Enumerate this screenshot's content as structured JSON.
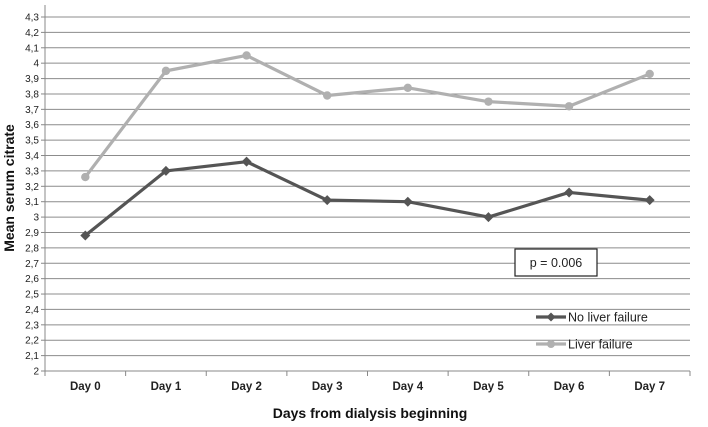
{
  "chart_data": {
    "type": "line",
    "title": "",
    "xlabel": "Days from dialysis beginning",
    "ylabel": "Mean serum citrate",
    "categories": [
      "Day 0",
      "Day 1",
      "Day 2",
      "Day 3",
      "Day 4",
      "Day 5",
      "Day 6",
      "Day 7"
    ],
    "ylim": [
      2,
      4.3
    ],
    "ystep": 0.1,
    "yticks": [
      "2",
      "2,1",
      "2,2",
      "2,3",
      "2,4",
      "2,5",
      "2,6",
      "2,7",
      "2,8",
      "2,9",
      "3",
      "3,1",
      "3,2",
      "3,3",
      "3,4",
      "3,5",
      "3,6",
      "3,7",
      "3,8",
      "3,9",
      "4",
      "4,1",
      "4,2",
      "4,3"
    ],
    "grid": true,
    "legend_position": "bottom-right",
    "series": [
      {
        "name": "No liver failure",
        "color": "#555555",
        "marker": "diamond",
        "values": [
          2.88,
          3.3,
          3.36,
          3.11,
          3.1,
          3.0,
          3.16,
          3.11
        ]
      },
      {
        "name": "Liver failure",
        "color": "#b0b0b0",
        "marker": "circle",
        "values": [
          3.26,
          3.95,
          4.05,
          3.79,
          3.84,
          3.75,
          3.72,
          3.93
        ]
      }
    ],
    "annotation": "p = 0.006"
  }
}
